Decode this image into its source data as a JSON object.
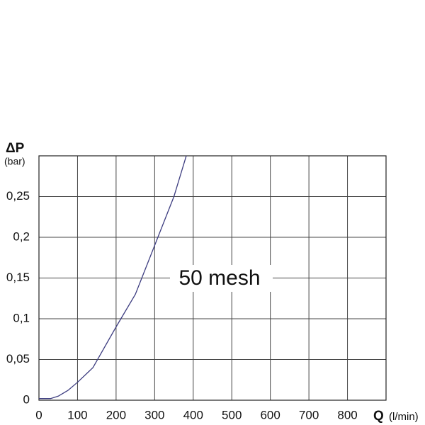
{
  "chart_data": {
    "type": "line",
    "y_label": "ΔP",
    "y_unit": "(bar)",
    "x_label": "Q",
    "x_unit": "(l/min)",
    "annotation": "50 mesh",
    "x": [
      0,
      30,
      50,
      75,
      100,
      140,
      200,
      250,
      300,
      350,
      382
    ],
    "series": [
      {
        "color": "#3d3d80",
        "values": [
          0.002,
          0.002,
          0.005,
          0.012,
          0.022,
          0.04,
          0.09,
          0.13,
          0.19,
          0.25,
          0.3
        ]
      }
    ],
    "xlim": [
      0,
      900
    ],
    "xticks": [
      0,
      100,
      200,
      300,
      400,
      500,
      600,
      700,
      800
    ],
    "ylim": [
      0,
      0.3
    ],
    "yticks": [
      0,
      {
        "value": 0.05,
        "label": "0,05"
      },
      {
        "value": 0.1,
        "label": "0,1"
      },
      {
        "value": 0.15,
        "label": "0,15"
      },
      {
        "value": 0.2,
        "label": "0,2"
      },
      {
        "value": 0.25,
        "label": "0,25"
      }
    ],
    "grid": true
  }
}
